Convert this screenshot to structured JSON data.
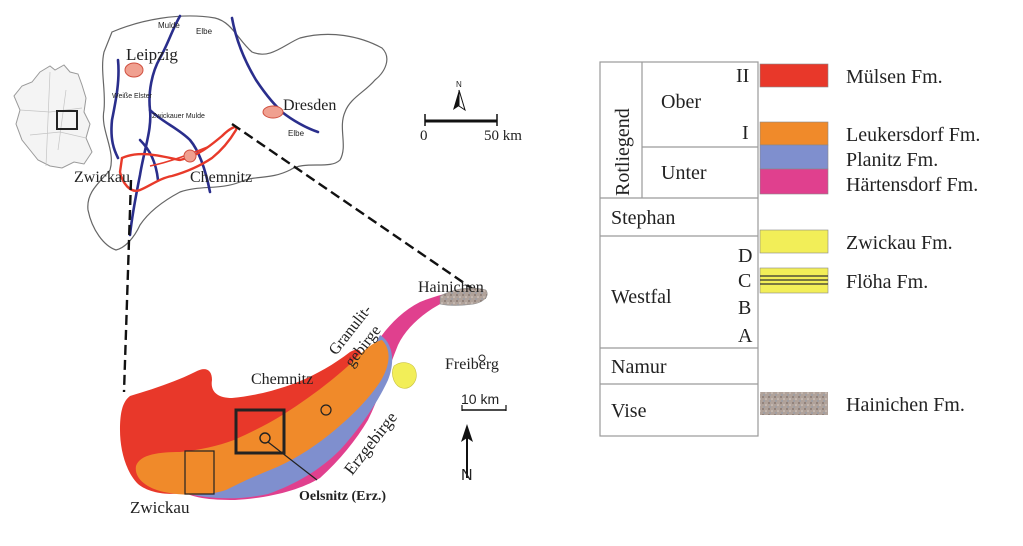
{
  "overview_map": {
    "cities": [
      "Leipzig",
      "Dresden",
      "Chemnitz",
      "Zwickau"
    ],
    "rivers": [
      "Mulde",
      "Elbe",
      "Weiße Elster",
      "Zwickauer Mulde",
      "Elbe"
    ],
    "scale_bar": {
      "start": "0",
      "end": "50 km"
    },
    "north": "N"
  },
  "detail_map": {
    "labels": {
      "hainichen": "Hainichen",
      "granulit": "Granulit-",
      "gebirge": "gebirge",
      "chemnitz": "Chemnitz",
      "freiberg": "Freiberg",
      "erzgebirge": "Erzgebirge",
      "zwickau": "Zwickau",
      "oelsnitz": "Oelsnitz (Erz.)"
    },
    "scale_bar": "10 km",
    "north": "N"
  },
  "stratigraphy": {
    "system": "Rotliegend",
    "units": [
      "Ober",
      "Unter",
      "Stephan",
      "Westfal",
      "Namur",
      "Vise"
    ],
    "ober_subunits": [
      "II",
      "I"
    ],
    "westfal_subunits": [
      "D",
      "C",
      "B",
      "A"
    ]
  },
  "legend": [
    {
      "label": "Mülsen Fm.",
      "color": "#e8382a"
    },
    {
      "label": "Leukersdorf Fm.",
      "color": "#f08a2a"
    },
    {
      "label": "Planitz Fm.",
      "color": "#7f8fce"
    },
    {
      "label": "Härtensdorf Fm.",
      "color": "#e0408e"
    },
    {
      "label": "Zwickau Fm.",
      "color": "#f2ee58"
    },
    {
      "label": "Flöha Fm.",
      "color": "#f2ee58"
    },
    {
      "label": "Hainichen Fm.",
      "color": "#a79a92"
    }
  ]
}
